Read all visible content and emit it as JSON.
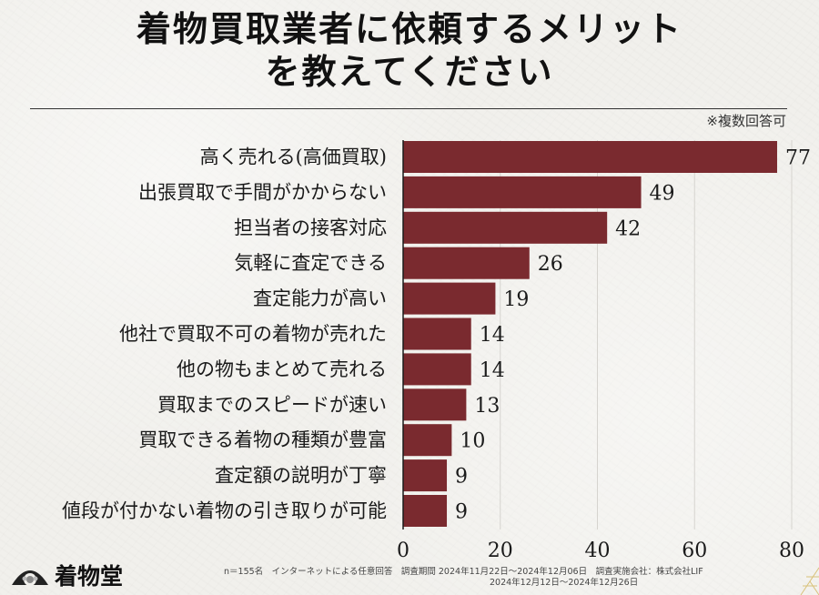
{
  "chart_data": {
    "type": "bar",
    "orientation": "horizontal",
    "title_line1": "着物買取業者に依頼するメリット",
    "title_line2": "を教えてください",
    "note": "※複数回答可",
    "categories": [
      "高く売れる(高価買取)",
      "出張買取で手間がかからない",
      "担当者の接客対応",
      "気軽に査定できる",
      "査定能力が高い",
      "他社で買取不可の着物が売れた",
      "他の物もまとめて売れる",
      "買取までのスピードが速い",
      "買取できる着物の種類が豊富",
      "査定額の説明が丁寧",
      "値段が付かない着物の引き取りが可能"
    ],
    "values": [
      77,
      49,
      42,
      26,
      19,
      14,
      14,
      13,
      10,
      9,
      9
    ],
    "xlim": [
      0,
      80
    ],
    "xticks": [
      "0",
      "20",
      "40",
      "60",
      "80"
    ],
    "grid": "vertical",
    "bar_color": "#7a2a2f"
  },
  "footer": {
    "brand": "着物堂",
    "line1": "n＝155名　インターネットによる任意回答　調査期間 2024年11月22日～2024年12月06日　調査実施会社：株式会社LIF",
    "line2": "2024年12月12日～2024年12月26日"
  }
}
